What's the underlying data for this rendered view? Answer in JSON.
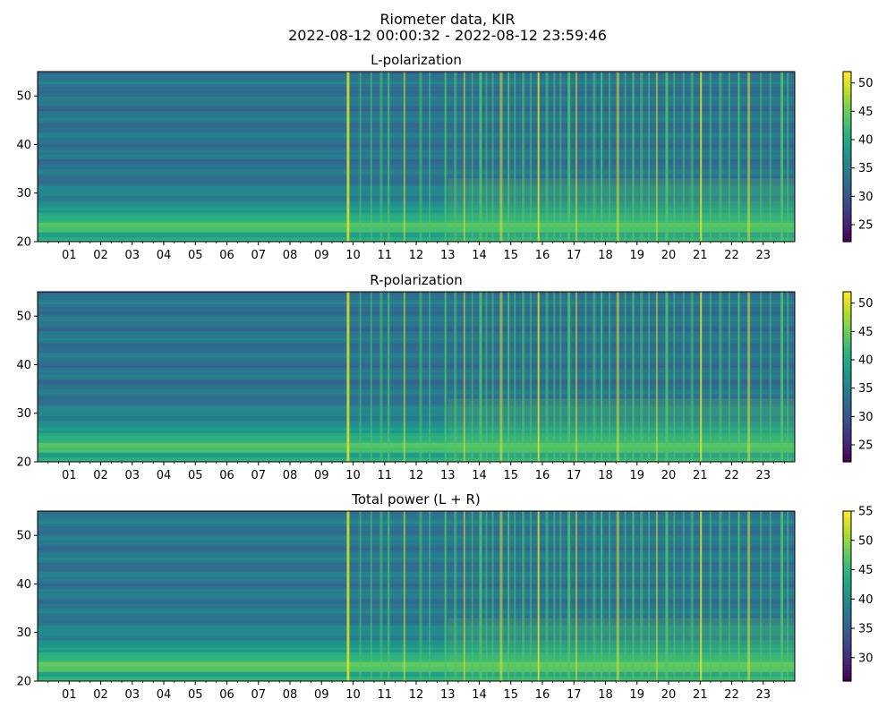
{
  "title": "Riometer data, KIR",
  "subtitle": "2022-08-12 00:00:32 - 2022-08-12 23:59:46",
  "chart_data": [
    {
      "type": "heatmap",
      "title": "L-polarization",
      "xlabel": "",
      "ylabel": "",
      "x_tick_labels": [
        "01",
        "02",
        "03",
        "04",
        "05",
        "06",
        "07",
        "08",
        "09",
        "10",
        "11",
        "12",
        "13",
        "14",
        "15",
        "16",
        "17",
        "18",
        "19",
        "20",
        "21",
        "22",
        "23"
      ],
      "x_range_hours": [
        0,
        24
      ],
      "y_ticks": [
        20,
        30,
        40,
        50
      ],
      "y_range": [
        20,
        55
      ],
      "colorbar": {
        "colormap": "viridis",
        "ticks": [
          25,
          30,
          35,
          40,
          45,
          50
        ],
        "range": [
          22,
          52
        ]
      }
    },
    {
      "type": "heatmap",
      "title": "R-polarization",
      "xlabel": "",
      "ylabel": "",
      "x_tick_labels": [
        "01",
        "02",
        "03",
        "04",
        "05",
        "06",
        "07",
        "08",
        "09",
        "10",
        "11",
        "12",
        "13",
        "14",
        "15",
        "16",
        "17",
        "18",
        "19",
        "20",
        "21",
        "22",
        "23"
      ],
      "x_range_hours": [
        0,
        24
      ],
      "y_ticks": [
        20,
        30,
        40,
        50
      ],
      "y_range": [
        20,
        55
      ],
      "colorbar": {
        "colormap": "viridis",
        "ticks": [
          25,
          30,
          35,
          40,
          45,
          50
        ],
        "range": [
          22,
          52
        ]
      }
    },
    {
      "type": "heatmap",
      "title": "Total power (L + R)",
      "xlabel": "",
      "ylabel": "",
      "x_tick_labels": [
        "01",
        "02",
        "03",
        "04",
        "05",
        "06",
        "07",
        "08",
        "09",
        "10",
        "11",
        "12",
        "13",
        "14",
        "15",
        "16",
        "17",
        "18",
        "19",
        "20",
        "21",
        "22",
        "23"
      ],
      "x_range_hours": [
        0,
        24
      ],
      "y_ticks": [
        20,
        30,
        40,
        50
      ],
      "y_range": [
        20,
        55
      ],
      "colorbar": {
        "colormap": "viridis",
        "ticks": [
          30,
          35,
          40,
          45,
          50,
          55
        ],
        "range": [
          26,
          55
        ]
      }
    }
  ]
}
